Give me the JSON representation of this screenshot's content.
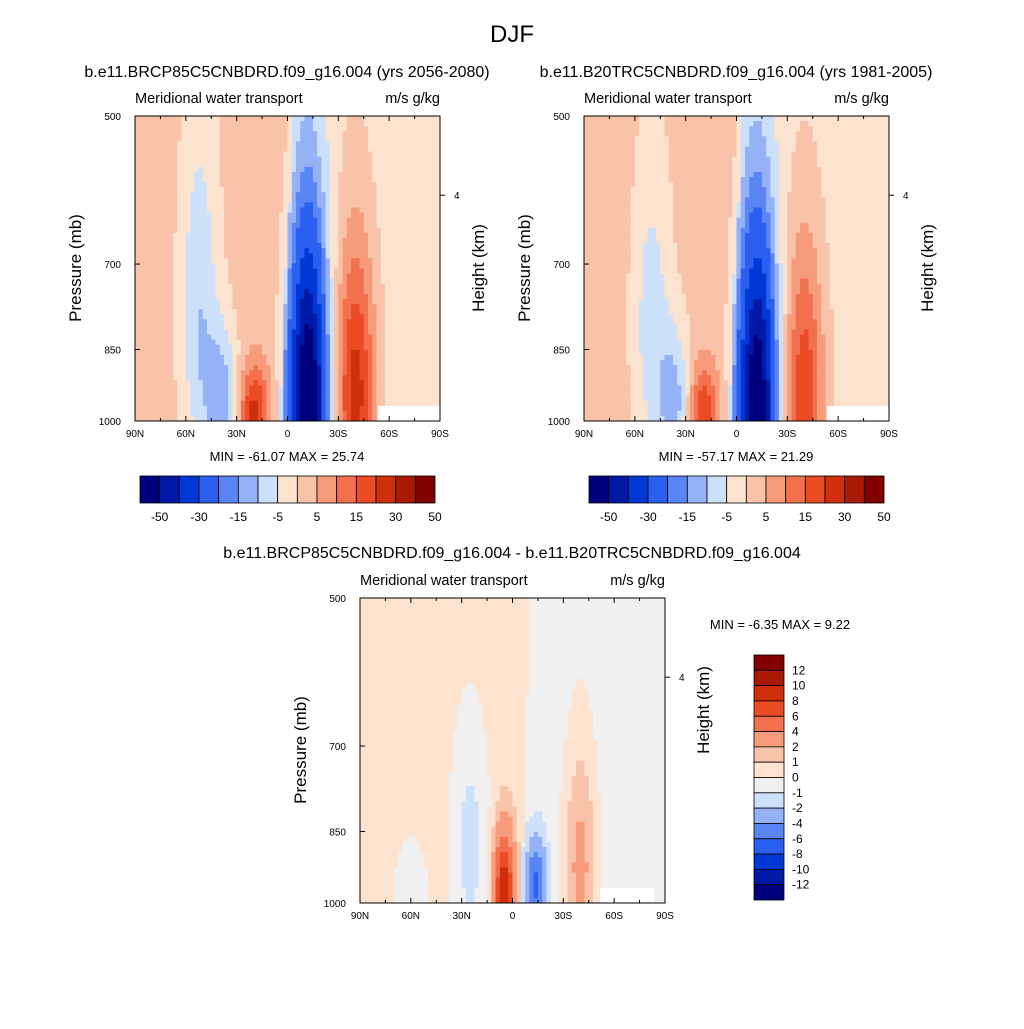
{
  "figure": {
    "title": "DJF",
    "panel_titles": [
      "b.e11.BRCP85C5CNBDRD.f09_g16.004 (yrs 2056-2080)",
      "b.e11.B20TRC5CNBDRD.f09_g16.004 (yrs 1981-2005)",
      "b.e11.BRCP85C5CNBDRD.f09_g16.004 - b.e11.B20TRC5CNBDRD.f09_g16.004"
    ]
  },
  "colors": {
    "abs_scale": [
      "#00007f",
      "#0019a6",
      "#0038d6",
      "#2a5ff0",
      "#5a86f5",
      "#95b2f7",
      "#cce0fa",
      "#fce3d0",
      "#f8c3a8",
      "#f69c7b",
      "#f3704f",
      "#eb4b25",
      "#cf2f0c",
      "#a81a04",
      "#820000"
    ],
    "diff_scale": [
      "#00007f",
      "#0019a6",
      "#0038d6",
      "#2a5ff0",
      "#5a86f5",
      "#95b2f7",
      "#cce0fa",
      "#f0f0f0",
      "#fce3d0",
      "#f8c3a8",
      "#f69c7b",
      "#f3704f",
      "#eb4b25",
      "#cf2f0c",
      "#a81a04",
      "#820000"
    ]
  },
  "chart_data": [
    {
      "type": "heatmap",
      "title": "Meridional water transport",
      "units": "m/s g/kg",
      "ylabel": "Pressure (mb)",
      "ylabel_right": "Height (km)",
      "x_ticks": [
        "90N",
        "60N",
        "30N",
        "0",
        "30S",
        "60S",
        "90S"
      ],
      "y_ticks": [
        "500",
        "700",
        "850",
        "1000"
      ],
      "y_ticks_right": [
        "4"
      ],
      "stats": "MIN = -61.07  MAX = 25.74",
      "colorbar_labels": [
        "-50",
        "-30",
        "-15",
        "-5",
        "5",
        "15",
        "30",
        "50"
      ],
      "features": [
        {
          "lat": -40,
          "p": 940,
          "value": 25,
          "wlat": 12,
          "wp": 300
        },
        {
          "lat": -12,
          "p": 960,
          "value": -60,
          "wlat": 11,
          "wp": 320
        },
        {
          "lat": 20,
          "p": 980,
          "value": 20,
          "wlat": 9,
          "wp": 100
        },
        {
          "lat": 38,
          "p": 960,
          "value": -15,
          "wlat": 10,
          "wp": 150
        },
        {
          "lat": 52,
          "p": 780,
          "value": -12,
          "wlat": 12,
          "wp": 320
        }
      ]
    },
    {
      "type": "heatmap",
      "title": "Meridional water transport",
      "units": "m/s g/kg",
      "ylabel": "Pressure (mb)",
      "ylabel_right": "Height (km)",
      "x_ticks": [
        "90N",
        "60N",
        "30N",
        "0",
        "30S",
        "60S",
        "90S"
      ],
      "y_ticks": [
        "500",
        "700",
        "850",
        "1000"
      ],
      "y_ticks_right": [
        "4"
      ],
      "stats": "MIN = -57.17  MAX = 21.29",
      "colorbar_labels": [
        "-50",
        "-30",
        "-15",
        "-5",
        "5",
        "15",
        "30",
        "50"
      ],
      "features": [
        {
          "lat": -40,
          "p": 940,
          "value": 21,
          "wlat": 12,
          "wp": 300
        },
        {
          "lat": -12,
          "p": 960,
          "value": -57,
          "wlat": 11,
          "wp": 320
        },
        {
          "lat": 20,
          "p": 980,
          "value": 18,
          "wlat": 9,
          "wp": 100
        },
        {
          "lat": 36,
          "p": 960,
          "value": -14,
          "wlat": 10,
          "wp": 150
        },
        {
          "lat": 50,
          "p": 800,
          "value": -10,
          "wlat": 12,
          "wp": 300
        }
      ]
    },
    {
      "type": "heatmap",
      "title": "Meridional water transport",
      "units": "m/s g/kg",
      "ylabel": "Pressure (mb)",
      "ylabel_right": "Height (km)",
      "x_ticks": [
        "90N",
        "60N",
        "30N",
        "0",
        "30S",
        "60S",
        "90S"
      ],
      "y_ticks": [
        "500",
        "700",
        "850",
        "1000"
      ],
      "y_ticks_right": [
        "4"
      ],
      "stats": "MIN =  -6.35  MAX =   9.22",
      "colorbar_labels": [
        "12",
        "10",
        "8",
        "6",
        "4",
        "2",
        "1",
        "0",
        "-1",
        "-2",
        "-4",
        "-6",
        "-8",
        "-10",
        "-12"
      ],
      "features": [
        {
          "lat": 5,
          "p": 970,
          "value": 9,
          "wlat": 6,
          "wp": 120
        },
        {
          "lat": -14,
          "p": 960,
          "value": -6,
          "wlat": 6,
          "wp": 90
        },
        {
          "lat": -40,
          "p": 920,
          "value": 3,
          "wlat": 10,
          "wp": 250
        },
        {
          "lat": 25,
          "p": 880,
          "value": -2,
          "wlat": 12,
          "wp": 250
        },
        {
          "lat": 60,
          "p": 960,
          "value": -1.5,
          "wlat": 10,
          "wp": 100
        }
      ]
    }
  ]
}
